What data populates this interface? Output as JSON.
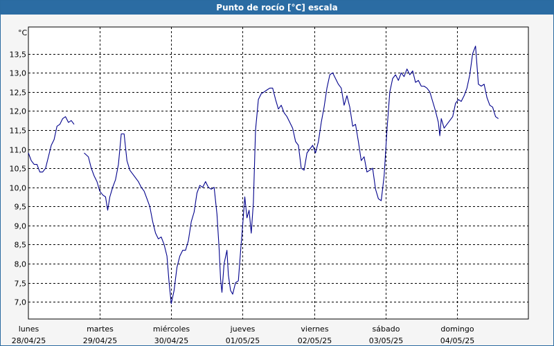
{
  "chart_data": {
    "type": "line",
    "title": "Punto de rocío [°C] escala",
    "yunit": "°C",
    "ylim": [
      6.55,
      14.2
    ],
    "yticks": [
      "7,0",
      "7,5",
      "8,0",
      "8,5",
      "9,0",
      "9,5",
      "10,0",
      "10,5",
      "11,0",
      "11,5",
      "12,0",
      "12,5",
      "13,0",
      "13,5"
    ],
    "xlim": [
      0,
      7
    ],
    "xtick_labels": [
      {
        "day": "lunes",
        "date": "28/04/25"
      },
      {
        "day": "martes",
        "date": "29/04/25"
      },
      {
        "day": "miércoles",
        "date": "30/04/25"
      },
      {
        "day": "jueves",
        "date": "01/05/25"
      },
      {
        "day": "viernes",
        "date": "02/05/25"
      },
      {
        "day": "sábado",
        "date": "03/05/25"
      },
      {
        "day": "domingo",
        "date": "04/05/25"
      }
    ],
    "grid": true,
    "line_color": "#00008b",
    "series": [
      {
        "segments": [
          [
            [
              0.0,
              10.9
            ],
            [
              0.04,
              10.7
            ],
            [
              0.08,
              10.6
            ],
            [
              0.12,
              10.6
            ],
            [
              0.16,
              10.4
            ],
            [
              0.2,
              10.4
            ],
            [
              0.24,
              10.5
            ],
            [
              0.28,
              10.8
            ],
            [
              0.32,
              11.1
            ],
            [
              0.36,
              11.25
            ],
            [
              0.4,
              11.6
            ],
            [
              0.44,
              11.65
            ],
            [
              0.48,
              11.8
            ],
            [
              0.52,
              11.85
            ],
            [
              0.56,
              11.7
            ],
            [
              0.6,
              11.75
            ],
            [
              0.64,
              11.65
            ]
          ],
          [
            [
              0.78,
              10.9
            ],
            [
              0.84,
              10.8
            ],
            [
              0.88,
              10.5
            ],
            [
              0.92,
              10.3
            ],
            [
              0.96,
              10.15
            ],
            [
              1.0,
              9.9
            ],
            [
              1.04,
              9.8
            ],
            [
              1.08,
              9.75
            ],
            [
              1.11,
              9.4
            ],
            [
              1.14,
              9.75
            ],
            [
              1.18,
              10.0
            ],
            [
              1.22,
              10.2
            ],
            [
              1.26,
              10.6
            ],
            [
              1.3,
              11.4
            ],
            [
              1.34,
              11.4
            ],
            [
              1.38,
              10.7
            ],
            [
              1.42,
              10.45
            ],
            [
              1.46,
              10.35
            ],
            [
              1.5,
              10.25
            ],
            [
              1.54,
              10.15
            ],
            [
              1.58,
              10.0
            ],
            [
              1.62,
              9.9
            ],
            [
              1.66,
              9.7
            ],
            [
              1.7,
              9.5
            ],
            [
              1.74,
              9.1
            ],
            [
              1.78,
              8.8
            ],
            [
              1.82,
              8.65
            ],
            [
              1.86,
              8.7
            ],
            [
              1.9,
              8.5
            ],
            [
              1.94,
              8.2
            ],
            [
              1.97,
              7.5
            ],
            [
              2.0,
              6.95
            ],
            [
              2.04,
              7.3
            ],
            [
              2.08,
              7.9
            ],
            [
              2.12,
              8.2
            ],
            [
              2.16,
              8.35
            ],
            [
              2.2,
              8.35
            ],
            [
              2.24,
              8.6
            ],
            [
              2.28,
              9.1
            ],
            [
              2.32,
              9.35
            ],
            [
              2.36,
              9.85
            ],
            [
              2.4,
              10.05
            ],
            [
              2.44,
              10.0
            ],
            [
              2.48,
              10.15
            ],
            [
              2.52,
              10.0
            ],
            [
              2.56,
              9.95
            ],
            [
              2.6,
              10.0
            ],
            [
              2.64,
              9.3
            ],
            [
              2.67,
              8.4
            ],
            [
              2.69,
              7.6
            ],
            [
              2.71,
              7.25
            ],
            [
              2.74,
              8.0
            ],
            [
              2.78,
              8.35
            ],
            [
              2.8,
              7.7
            ],
            [
              2.83,
              7.3
            ],
            [
              2.86,
              7.2
            ],
            [
              2.9,
              7.5
            ],
            [
              2.94,
              7.55
            ],
            [
              2.97,
              8.3
            ],
            [
              3.0,
              9.0
            ],
            [
              3.03,
              9.75
            ],
            [
              3.06,
              9.2
            ],
            [
              3.09,
              9.4
            ],
            [
              3.12,
              8.8
            ],
            [
              3.15,
              9.6
            ],
            [
              3.18,
              11.5
            ],
            [
              3.22,
              12.3
            ],
            [
              3.26,
              12.45
            ],
            [
              3.3,
              12.5
            ],
            [
              3.34,
              12.55
            ],
            [
              3.38,
              12.6
            ],
            [
              3.42,
              12.6
            ],
            [
              3.46,
              12.3
            ],
            [
              3.5,
              12.05
            ],
            [
              3.54,
              12.15
            ],
            [
              3.58,
              11.95
            ],
            [
              3.62,
              11.85
            ],
            [
              3.66,
              11.7
            ],
            [
              3.7,
              11.55
            ],
            [
              3.74,
              11.2
            ],
            [
              3.78,
              11.1
            ],
            [
              3.82,
              10.5
            ],
            [
              3.86,
              10.45
            ],
            [
              3.9,
              10.9
            ],
            [
              3.94,
              11.0
            ],
            [
              3.98,
              11.1
            ],
            [
              4.02,
              10.9
            ],
            [
              4.06,
              11.2
            ],
            [
              4.1,
              11.7
            ],
            [
              4.14,
              12.1
            ],
            [
              4.18,
              12.6
            ],
            [
              4.22,
              12.95
            ],
            [
              4.26,
              13.0
            ],
            [
              4.3,
              12.85
            ],
            [
              4.34,
              12.7
            ],
            [
              4.38,
              12.6
            ],
            [
              4.42,
              12.15
            ],
            [
              4.46,
              12.4
            ],
            [
              4.5,
              12.1
            ],
            [
              4.54,
              11.6
            ],
            [
              4.58,
              11.65
            ],
            [
              4.62,
              11.2
            ],
            [
              4.66,
              10.7
            ],
            [
              4.7,
              10.8
            ],
            [
              4.74,
              10.4
            ],
            [
              4.78,
              10.45
            ],
            [
              4.82,
              10.5
            ],
            [
              4.86,
              9.95
            ],
            [
              4.9,
              9.7
            ],
            [
              4.94,
              9.65
            ],
            [
              4.98,
              10.3
            ],
            [
              5.02,
              11.5
            ],
            [
              5.06,
              12.5
            ],
            [
              5.1,
              12.85
            ],
            [
              5.14,
              12.95
            ],
            [
              5.18,
              12.8
            ],
            [
              5.22,
              13.0
            ],
            [
              5.26,
              12.9
            ],
            [
              5.3,
              13.1
            ],
            [
              5.34,
              12.95
            ],
            [
              5.38,
              13.05
            ],
            [
              5.42,
              12.75
            ],
            [
              5.46,
              12.8
            ],
            [
              5.5,
              12.65
            ],
            [
              5.54,
              12.65
            ],
            [
              5.58,
              12.6
            ],
            [
              5.62,
              12.5
            ],
            [
              5.66,
              12.25
            ],
            [
              5.7,
              12.0
            ],
            [
              5.74,
              11.7
            ],
            [
              5.76,
              11.35
            ],
            [
              5.78,
              11.8
            ],
            [
              5.82,
              11.55
            ],
            [
              5.86,
              11.65
            ],
            [
              5.9,
              11.75
            ],
            [
              5.94,
              11.85
            ],
            [
              5.98,
              12.2
            ],
            [
              6.02,
              12.3
            ],
            [
              6.06,
              12.25
            ],
            [
              6.1,
              12.4
            ],
            [
              6.14,
              12.6
            ],
            [
              6.18,
              12.95
            ],
            [
              6.22,
              13.5
            ],
            [
              6.26,
              13.7
            ],
            [
              6.3,
              12.7
            ],
            [
              6.34,
              12.65
            ],
            [
              6.38,
              12.7
            ],
            [
              6.42,
              12.35
            ],
            [
              6.46,
              12.15
            ],
            [
              6.5,
              12.1
            ],
            [
              6.54,
              11.85
            ],
            [
              6.58,
              11.8
            ]
          ]
        ]
      }
    ]
  }
}
